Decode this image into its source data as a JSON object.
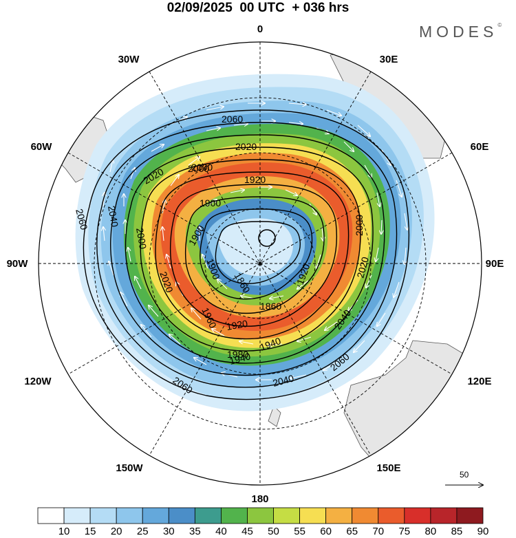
{
  "header": {
    "title": "02/09/2025  00 UTC  + 036 hrs",
    "brand": "MODES",
    "brand_mark": "©"
  },
  "map": {
    "projection": "south polar stereographic",
    "longitude_labels": {
      "top": "0",
      "top_right": "30E",
      "right_upper": "60E",
      "right": "90E",
      "right_lower": "120E",
      "bottom_right": "150E",
      "bottom": "180",
      "bottom_left": "150W",
      "left_lower": "120W",
      "left": "90W",
      "left_upper": "60W",
      "top_left": "30W"
    },
    "contour_labels": [
      "2060",
      "2020",
      "2000",
      "1920",
      "1900",
      "1900",
      "1860",
      "1860",
      "1940",
      "1960",
      "1980",
      "2000",
      "2020",
      "2040",
      "2060",
      "2060",
      "2040",
      "2020",
      "2000",
      "1920",
      "2040",
      "2020",
      "2000",
      "1940",
      "1920",
      "1900",
      "2060"
    ],
    "reference_vector": "50",
    "colors": {
      "land": "#e6e6e6",
      "coast": "#555555",
      "grid": "#000000"
    }
  },
  "colorbar": {
    "labels": [
      "10",
      "15",
      "20",
      "25",
      "30",
      "35",
      "40",
      "45",
      "50",
      "55",
      "60",
      "65",
      "70",
      "75",
      "80",
      "85",
      "90"
    ],
    "colors": [
      "#ffffff",
      "#d6ecfa",
      "#b4dcf5",
      "#8ec6ec",
      "#64a8db",
      "#4b8ec8",
      "#3d9c8e",
      "#52b34c",
      "#8cc63f",
      "#c5dd44",
      "#f6de52",
      "#f4b042",
      "#f08a32",
      "#ea5c2c",
      "#d82f2a",
      "#b8252a",
      "#8e1a1f"
    ]
  }
}
